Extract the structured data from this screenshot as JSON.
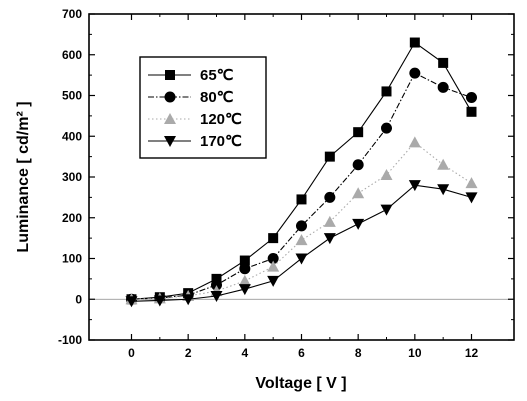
{
  "chart_data": {
    "type": "line",
    "xlabel": "Voltage [ V ]",
    "ylabel": "Luminance [ cd/m² ]",
    "xlim": [
      -1.5,
      13.5
    ],
    "ylim": [
      -100,
      700
    ],
    "x_ticks": [
      "0",
      "2",
      "4",
      "6",
      "8",
      "10",
      "12"
    ],
    "y_ticks": [
      "-100",
      "0",
      "100",
      "200",
      "300",
      "400",
      "500",
      "600",
      "700"
    ],
    "x": [
      0,
      1,
      2,
      3,
      4,
      5,
      6,
      7,
      8,
      9,
      10,
      11,
      12
    ],
    "grid": false,
    "legend_position": "top-left",
    "series": [
      {
        "name": "65℃",
        "marker": "square",
        "color": "#000000",
        "line_style": "solid",
        "values": [
          0,
          5,
          15,
          50,
          95,
          150,
          245,
          350,
          410,
          510,
          630,
          580,
          460
        ]
      },
      {
        "name": "80℃",
        "marker": "circle",
        "color": "#000000",
        "line_style": "dashdot",
        "values": [
          0,
          3,
          10,
          35,
          75,
          100,
          180,
          250,
          330,
          420,
          555,
          520,
          495
        ]
      },
      {
        "name": "120℃",
        "marker": "triangle-up",
        "color": "#aaaaaa",
        "line_style": "dotted",
        "values": [
          0,
          2,
          8,
          20,
          45,
          80,
          145,
          190,
          260,
          305,
          385,
          330,
          285
        ]
      },
      {
        "name": "170℃",
        "marker": "triangle-down",
        "color": "#000000",
        "line_style": "solid",
        "values": [
          -5,
          -3,
          0,
          8,
          25,
          45,
          100,
          150,
          185,
          220,
          280,
          270,
          250
        ]
      }
    ]
  }
}
